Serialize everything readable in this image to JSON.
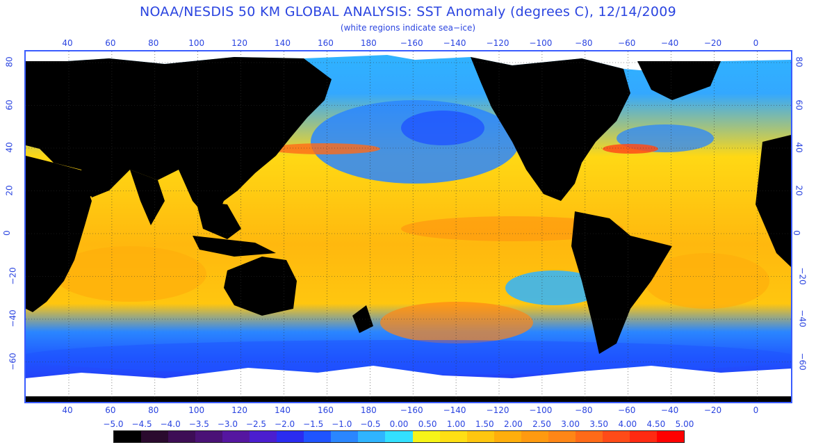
{
  "header": {
    "title": "NOAA/NESDIS 50 KM GLOBAL ANALYSIS: SST Anomaly (degrees C), 12/14/2009",
    "subtitle": "(white regions indicate sea−ice)"
  },
  "axes": {
    "longitude_labels": [
      "40",
      "60",
      "80",
      "100",
      "120",
      "140",
      "160",
      "180",
      "−160",
      "−140",
      "−120",
      "−100",
      "−80",
      "−60",
      "−40",
      "−20",
      "0"
    ],
    "latitude_labels": [
      "80",
      "60",
      "40",
      "20",
      "0",
      "−20",
      "−40",
      "−60"
    ]
  },
  "legend": {
    "labels": [
      "−5.0",
      "−4.5",
      "−4.0",
      "−3.5",
      "−3.0",
      "−2.5",
      "−2.0",
      "−1.5",
      "−1.0",
      "−0.5",
      "0.00",
      "0.50",
      "1.00",
      "1.50",
      "2.00",
      "2.50",
      "3.00",
      "3.50",
      "4.00",
      "4.50",
      "5.00"
    ],
    "colors": [
      "#000000",
      "#2a0a2e",
      "#3d0d55",
      "#4a1276",
      "#5516a0",
      "#4b1ecf",
      "#2a2cf0",
      "#1f54ff",
      "#2a86ff",
      "#2fb4ff",
      "#33e0ff",
      "#f6f418",
      "#ffdf14",
      "#ffc60f",
      "#ffae0c",
      "#ff9a10",
      "#ff8616",
      "#ff6a18",
      "#ff4b18",
      "#ff2a12",
      "#ff0000"
    ]
  },
  "map_colors": {
    "land": "#000000",
    "ice": "#ffffff",
    "ocean_warm": "#ffc40f",
    "ocean_cool": "#2fb4ff"
  }
}
